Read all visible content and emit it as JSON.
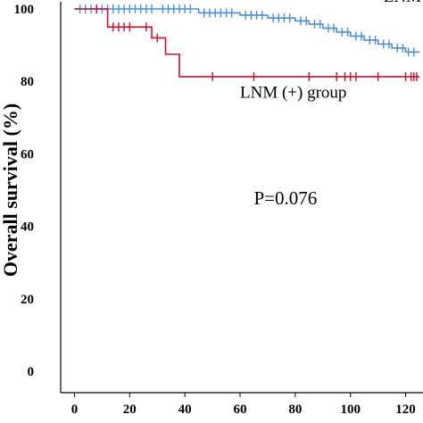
{
  "chart_data": {
    "type": "line",
    "title": "",
    "xlabel": "",
    "ylabel": "Overall survival (%)",
    "xlim": [
      -5,
      125
    ],
    "ylim": [
      0,
      100
    ],
    "x_ticks": [
      0,
      20,
      40,
      60,
      80,
      100,
      120
    ],
    "y_ticks": [
      0,
      20,
      40,
      60,
      80,
      100
    ],
    "grid": false,
    "series": [
      {
        "name": "LNM (-) group",
        "color": "#4a90d9",
        "step": true,
        "x": [
          0,
          30,
          45,
          60,
          70,
          80,
          85,
          90,
          95,
          100,
          105,
          110,
          115,
          120,
          125
        ],
        "y": [
          100,
          100,
          98.9,
          98.3,
          97.5,
          96.7,
          95.8,
          94.7,
          93.6,
          92.5,
          91.4,
          90.3,
          89.2,
          88.1,
          88.1
        ],
        "censor_x": [
          2,
          4,
          6,
          8,
          10,
          12,
          14,
          16,
          18,
          20,
          22,
          24,
          26,
          28,
          32,
          34,
          36,
          38,
          40,
          42,
          47,
          49,
          51,
          53,
          55,
          57,
          62,
          64,
          66,
          68,
          72,
          74,
          76,
          78,
          82,
          84,
          87,
          89,
          92,
          94,
          97,
          99,
          102,
          104,
          107,
          109,
          112,
          114,
          117,
          119,
          121,
          123
        ]
      },
      {
        "name": "LNM (+) group",
        "color": "#c8102e",
        "step": true,
        "x": [
          0,
          10,
          12,
          22,
          28,
          33,
          38,
          125
        ],
        "y": [
          100,
          100,
          95,
          95,
          92,
          87.5,
          81.3,
          81.3
        ],
        "censor_x": [
          8,
          14,
          16,
          18,
          20,
          26,
          30,
          50,
          65,
          85,
          95,
          98,
          100,
          102,
          110,
          120,
          122,
          123,
          124
        ]
      }
    ],
    "annotations": [
      {
        "text": "LNM (-) group",
        "x": 112,
        "y": 102
      },
      {
        "text": "LNM (+) group",
        "x": 60,
        "y": 75.5
      },
      {
        "text": "P=0.076",
        "x": 65,
        "y": 46
      }
    ]
  }
}
